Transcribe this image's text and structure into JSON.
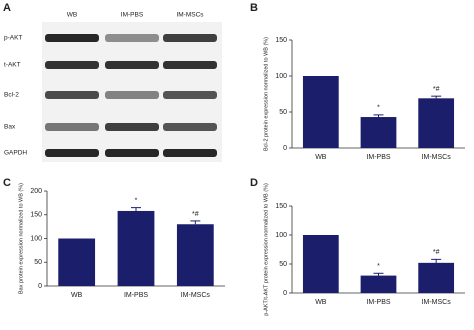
{
  "blot": {
    "panel": "A",
    "lanes": [
      "WB",
      "IM-PBS",
      "IM-MSCs"
    ],
    "rows": [
      "p-AKT",
      "t-AKT",
      "Bcl-2",
      "Bax",
      "GAPDH"
    ]
  },
  "chart_data": [
    {
      "type": "bar",
      "panel": "B",
      "ylabel": "Bcl-2 protein expression normalized to WB (%)",
      "categories": [
        "WB",
        "IM-PBS",
        "IM-MSCs"
      ],
      "values": [
        100,
        43,
        69
      ],
      "errors": [
        0,
        3,
        3
      ],
      "annotations": [
        null,
        "*",
        "*#"
      ],
      "color": "#1b1f6b",
      "ylim": [
        0,
        150
      ],
      "yticks": [
        0,
        50,
        100,
        150
      ]
    },
    {
      "type": "bar",
      "panel": "C",
      "ylabel": "Bax protein expression normalized to WB (%)",
      "categories": [
        "WB",
        "IM-PBS",
        "IM-MSCs"
      ],
      "values": [
        100,
        158,
        130
      ],
      "errors": [
        0,
        7,
        7
      ],
      "annotations": [
        null,
        "*",
        "*#"
      ],
      "color": "#1b1f6b",
      "ylim": [
        0,
        200
      ],
      "yticks": [
        0,
        50,
        100,
        150,
        200
      ]
    },
    {
      "type": "bar",
      "panel": "D",
      "ylabel": "p-AKT/t-AKT protein expression normalized to WB (%)",
      "categories": [
        "WB",
        "IM-PBS",
        "IM-MSCs"
      ],
      "values": [
        100,
        30,
        52
      ],
      "errors": [
        0,
        4,
        6
      ],
      "annotations": [
        null,
        "*",
        "*#"
      ],
      "color": "#1b1f6b",
      "ylim": [
        0,
        150
      ],
      "yticks": [
        0,
        50,
        100,
        150
      ]
    }
  ]
}
